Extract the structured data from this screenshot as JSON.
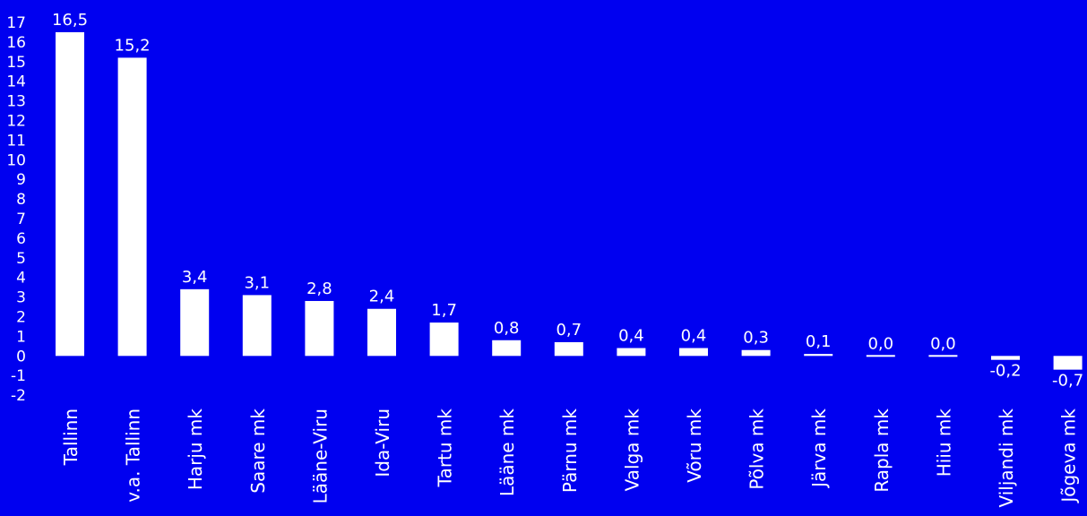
{
  "colors": {
    "background": "#0000f0",
    "bar": "#ffffff",
    "text": "#ffffff"
  },
  "chart_data": {
    "type": "bar",
    "title": "",
    "xlabel": "",
    "ylabel": "",
    "ylim": [
      -2,
      17
    ],
    "yticks": [
      "17",
      "16",
      "15",
      "14",
      "13",
      "12",
      "11",
      "10",
      "9",
      "8",
      "7",
      "6",
      "5",
      "4",
      "3",
      "2",
      "1",
      "0",
      "-1",
      "-2"
    ],
    "grid": false,
    "legend": "none",
    "categories": [
      "Tallinn",
      "v.a. Tallinn",
      "Harju mk",
      "Saare mk",
      "Lääne-Viru",
      "Ida-Viru",
      "Tartu mk",
      "Lääne mk",
      "Pärnu mk",
      "Valga mk",
      "Võru mk",
      "Põlva mk",
      "Järva mk",
      "Rapla mk",
      "Hiiu mk",
      "Viljandi mk",
      "Jõgeva mk"
    ],
    "values": [
      16.5,
      15.2,
      3.4,
      3.1,
      2.8,
      2.4,
      1.7,
      0.8,
      0.7,
      0.4,
      0.4,
      0.3,
      0.1,
      0.0,
      0.0,
      -0.2,
      -0.7
    ],
    "value_labels": [
      "16,5",
      "15,2",
      "3,4",
      "3,1",
      "2,8",
      "2,4",
      "1,7",
      "0,8",
      "0,7",
      "0,4",
      "0,4",
      "0,3",
      "0,1",
      "0,0",
      "0,0",
      "-0,2",
      "-0,7"
    ]
  }
}
